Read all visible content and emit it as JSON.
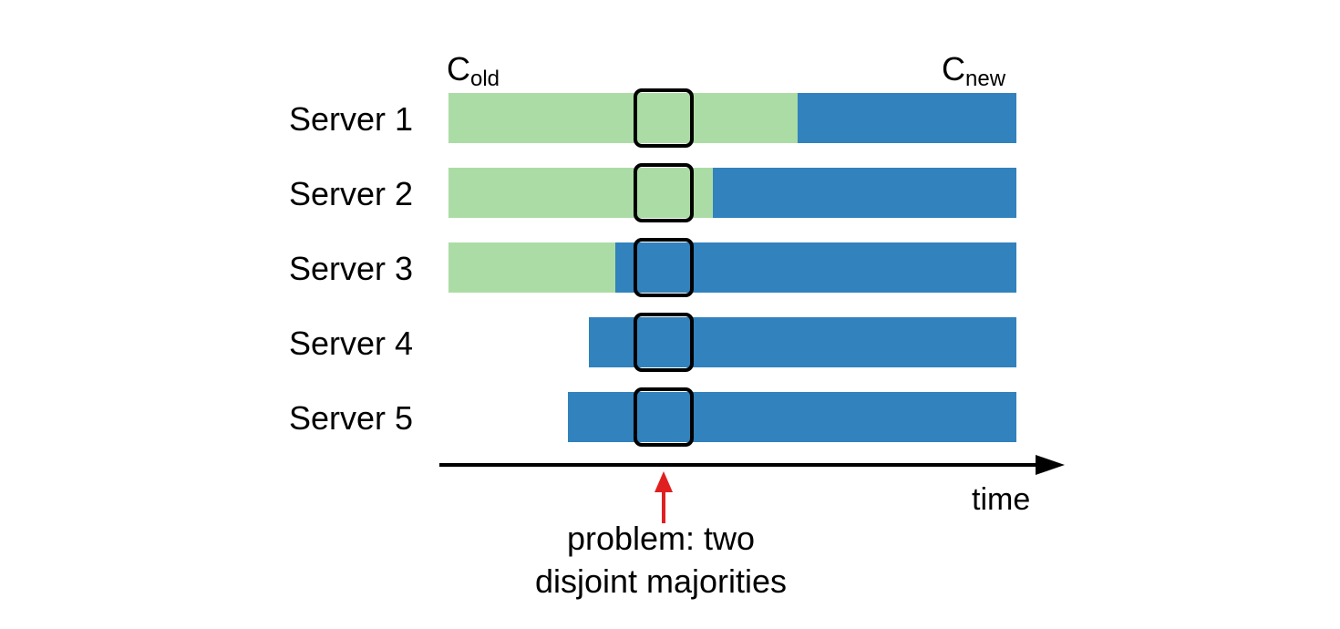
{
  "config_labels": {
    "old": {
      "main": "C",
      "sub": "old"
    },
    "new": {
      "main": "C",
      "sub": "new"
    }
  },
  "servers": [
    {
      "label": "Server 1"
    },
    {
      "label": "Server 2"
    },
    {
      "label": "Server 3"
    },
    {
      "label": "Server 4"
    },
    {
      "label": "Server 5"
    }
  ],
  "axis": {
    "label": "time"
  },
  "annotation": {
    "line1": "problem: two",
    "line2": "disjoint majorities"
  },
  "colors": {
    "old_config": "#acdca5",
    "new_config": "#3182bd",
    "highlight_border": "#000000",
    "arrow": "#e02020",
    "axis": "#000000"
  }
}
